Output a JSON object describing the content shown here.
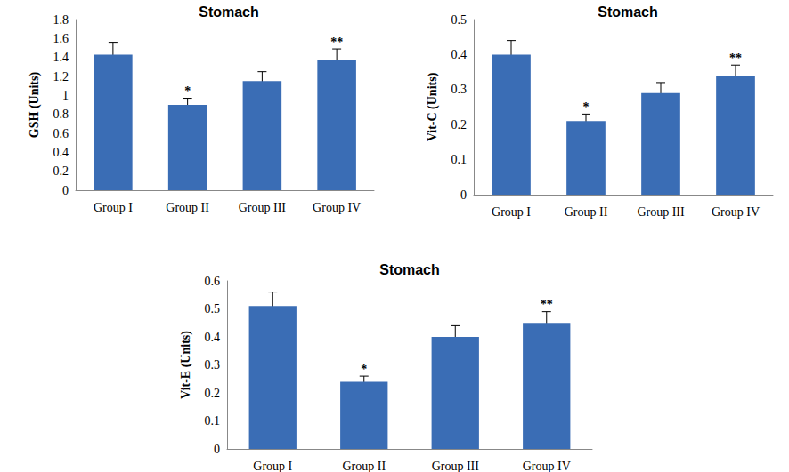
{
  "chart_data": [
    {
      "type": "bar",
      "title": "Stomach",
      "y_label": "GSH (Units)",
      "categories": [
        "Group I",
        "Group II",
        "Group III",
        "Group IV"
      ],
      "values": [
        1.43,
        0.9,
        1.15,
        1.37
      ],
      "errors": [
        0.13,
        0.07,
        0.1,
        0.12
      ],
      "annotations": [
        {
          "category": "Group II",
          "text": "*"
        },
        {
          "category": "Group IV",
          "text": "**"
        }
      ],
      "color": "#3a6db5",
      "ylim": [
        0,
        1.8
      ],
      "yticks": [
        0,
        0.2,
        0.4,
        0.6,
        0.8,
        1,
        1.2,
        1.4,
        1.6,
        1.8
      ],
      "grid": false
    },
    {
      "type": "bar",
      "title": "Stomach",
      "y_label": "Vit-C (Units)",
      "categories": [
        "Group I",
        "Group II",
        "Group III",
        "Group IV"
      ],
      "values": [
        0.4,
        0.21,
        0.29,
        0.34
      ],
      "errors": [
        0.04,
        0.02,
        0.03,
        0.03
      ],
      "annotations": [
        {
          "category": "Group II",
          "text": "*"
        },
        {
          "category": "Group IV",
          "text": "**"
        }
      ],
      "color": "#3a6db5",
      "ylim": [
        0,
        0.5
      ],
      "yticks": [
        0,
        0.1,
        0.2,
        0.3,
        0.4,
        0.5
      ],
      "grid": false
    },
    {
      "type": "bar",
      "title": "Stomach",
      "y_label": "Vit-E (Units)",
      "categories": [
        "Group I",
        "Group II",
        "Group III",
        "Group IV"
      ],
      "values": [
        0.51,
        0.24,
        0.4,
        0.45
      ],
      "errors": [
        0.05,
        0.02,
        0.04,
        0.04
      ],
      "annotations": [
        {
          "category": "Group II",
          "text": "*"
        },
        {
          "category": "Group IV",
          "text": "**"
        }
      ],
      "color": "#3a6db5",
      "ylim": [
        0,
        0.6
      ],
      "yticks": [
        0,
        0.1,
        0.2,
        0.3,
        0.4,
        0.5,
        0.6
      ],
      "grid": false
    }
  ]
}
